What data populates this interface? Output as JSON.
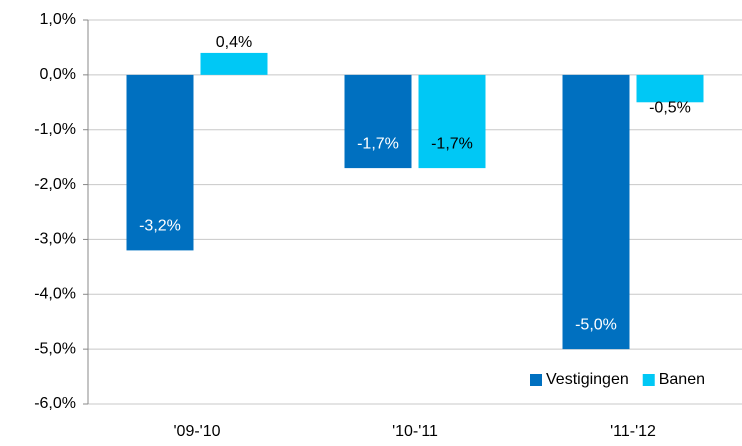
{
  "chart_data": {
    "type": "bar",
    "categories": [
      "'09-'10",
      "'10-'11",
      "'11-'12"
    ],
    "series": [
      {
        "name": "Vestigingen",
        "color": "#0070c0",
        "values": [
          -3.2,
          -1.7,
          -5.0
        ],
        "value_labels": [
          "-3,2%",
          "-1,7%",
          "-5,0%"
        ]
      },
      {
        "name": "Banen",
        "color": "#00c8f5",
        "values": [
          0.4,
          -1.7,
          -0.5
        ],
        "value_labels": [
          "0,4%",
          "-1,7%",
          "-0,5%"
        ]
      }
    ],
    "ylim": [
      -6,
      1
    ],
    "yticks": [
      {
        "value": 1,
        "label": "1,0%"
      },
      {
        "value": 0,
        "label": "0,0%"
      },
      {
        "value": -1,
        "label": "-1,0%"
      },
      {
        "value": -2,
        "label": "-2,0%"
      },
      {
        "value": -3,
        "label": "-3,0%"
      },
      {
        "value": -4,
        "label": "-4,0%"
      },
      {
        "value": -5,
        "label": "-5,0%"
      },
      {
        "value": -6,
        "label": "-6,0%"
      }
    ],
    "grid": true,
    "legend": "bottom-right"
  }
}
